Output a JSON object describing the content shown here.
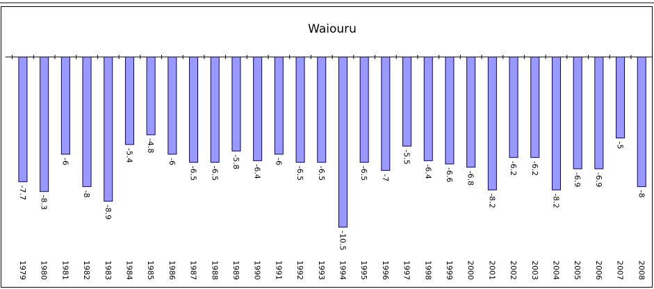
{
  "chart_data": {
    "type": "bar",
    "title": "Waiouru",
    "categories": [
      "1979",
      "1980",
      "1981",
      "1982",
      "1983",
      "1984",
      "1985",
      "1986",
      "1987",
      "1988",
      "1989",
      "1990",
      "1991",
      "1992",
      "1993",
      "1994",
      "1995",
      "1996",
      "1997",
      "1998",
      "1999",
      "2000",
      "2001",
      "2002",
      "2003",
      "2004",
      "2005",
      "2006",
      "2007",
      "2008"
    ],
    "values": [
      -7.7,
      -8.3,
      -6,
      -8,
      -8.9,
      -5.4,
      -4.8,
      -6,
      -6.5,
      -6.5,
      -5.8,
      -6.4,
      -6,
      -6.5,
      -6.5,
      -10.5,
      -6.5,
      -7,
      -5.5,
      -6.4,
      -6.6,
      -6.8,
      -8.2,
      -6.2,
      -6.2,
      -8.2,
      -6.9,
      -6.9,
      -5,
      -8
    ],
    "color": "#9999ff",
    "ylim": [
      -12,
      0
    ]
  }
}
